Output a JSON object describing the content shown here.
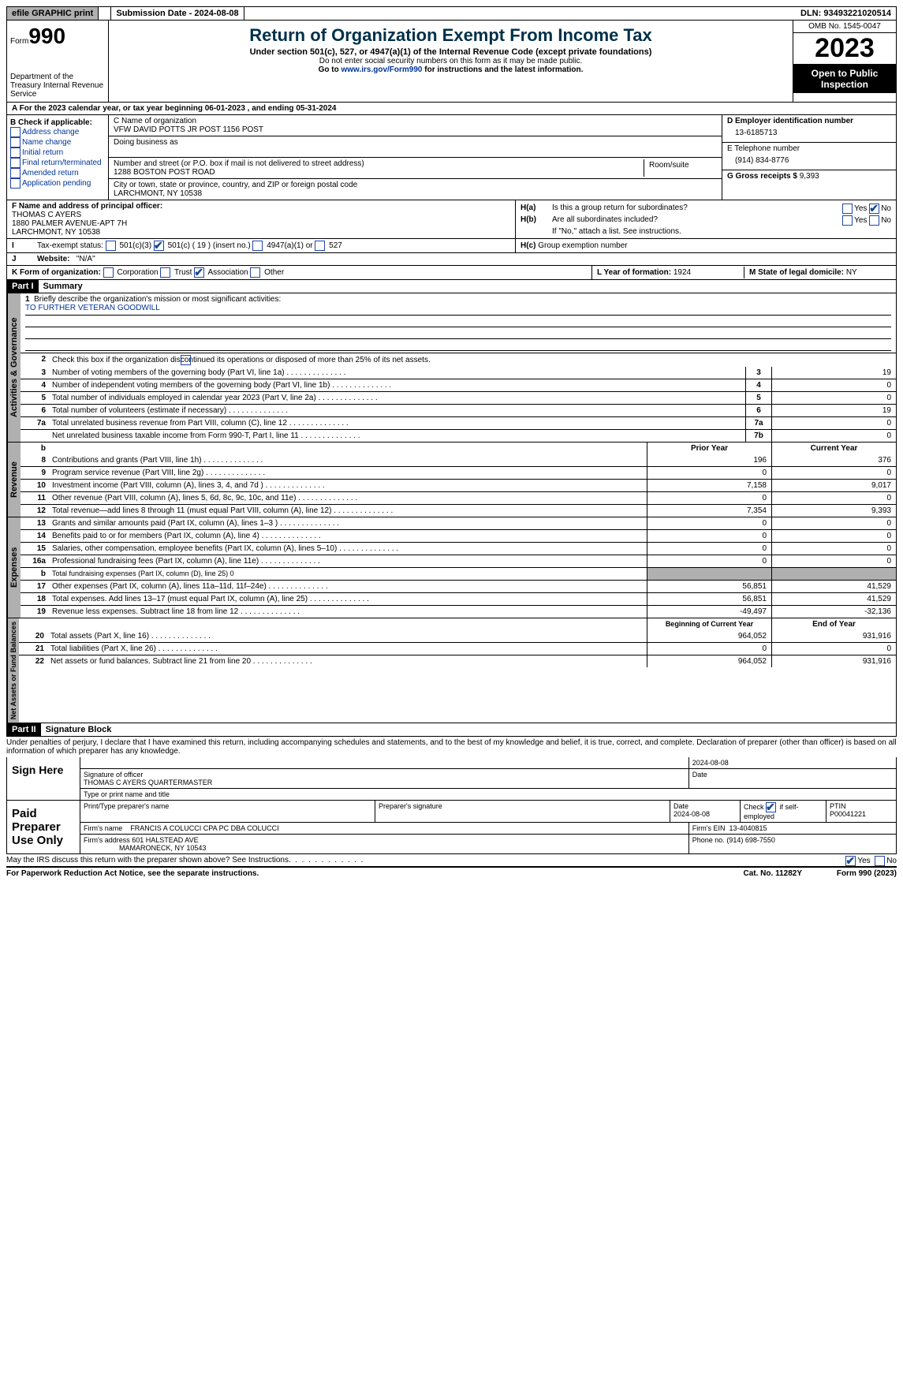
{
  "top": {
    "efile": "efile GRAPHIC print",
    "submission": "Submission Date - 2024-08-08",
    "dln": "DLN: 93493221020514"
  },
  "header": {
    "form_label": "Form",
    "form_num": "990",
    "dept": "Department of the Treasury Internal Revenue Service",
    "title": "Return of Organization Exempt From Income Tax",
    "subtitle": "Under section 501(c), 527, or 4947(a)(1) of the Internal Revenue Code (except private foundations)",
    "note1": "Do not enter social security numbers on this form as it may be made public.",
    "note2_pre": "Go to ",
    "note2_link": "www.irs.gov/Form990",
    "note2_post": " for instructions and the latest information.",
    "omb": "OMB No. 1545-0047",
    "year": "2023",
    "inspect": "Open to Public Inspection"
  },
  "rowA": "A  For the 2023 calendar year, or tax year beginning 06-01-2023    , and ending 05-31-2024",
  "boxB": {
    "title": "B Check if applicable:",
    "items": [
      "Address change",
      "Name change",
      "Initial return",
      "Final return/terminated",
      "Amended return",
      "Application pending"
    ]
  },
  "boxC": {
    "name_label": "C Name of organization",
    "name": "VFW DAVID POTTS JR POST 1156 POST",
    "dba_label": "Doing business as",
    "street_label": "Number and street (or P.O. box if mail is not delivered to street address)",
    "room_label": "Room/suite",
    "street": "1288 BOSTON POST ROAD",
    "city_label": "City or town, state or province, country, and ZIP or foreign postal code",
    "city": "LARCHMONT, NY  10538"
  },
  "boxD": {
    "label": "D Employer identification number",
    "val": "13-6185713"
  },
  "boxE": {
    "label": "E Telephone number",
    "val": "(914) 834-8776"
  },
  "boxG": {
    "label": "G Gross receipts $",
    "val": "9,393"
  },
  "boxF": {
    "label": "F  Name and address of principal officer:",
    "name": "THOMAS C AYERS",
    "addr1": "1880 PALMER AVENUE-APT 7H",
    "addr2": "LARCHMONT, NY  10538"
  },
  "boxH": {
    "a": "Is this a group return for subordinates?",
    "b": "Are all subordinates included?",
    "b_note": "If \"No,\" attach a list. See instructions.",
    "c": "Group exemption number",
    "yes": "Yes",
    "no": "No"
  },
  "boxI": {
    "label": "Tax-exempt status:",
    "c3": "501(c)(3)",
    "c": "501(c) ( 19 ) (insert no.)",
    "a4947": "4947(a)(1) or",
    "s527": "527"
  },
  "boxJ": {
    "label": "Website:",
    "val": "\"N/A\""
  },
  "boxK": {
    "label": "K Form of organization:",
    "corp": "Corporation",
    "trust": "Trust",
    "assoc": "Association",
    "other": "Other"
  },
  "boxL": {
    "label": "L Year of formation:",
    "val": "1924"
  },
  "boxM": {
    "label": "M State of legal domicile:",
    "val": "NY"
  },
  "part1": {
    "hdr": "Part I",
    "title": "Summary",
    "mission_label": "Briefly describe the organization's mission or most significant activities:",
    "mission": "TO FURTHER VETERAN GOODWILL",
    "line2": "Check this box       if the organization discontinued its operations or disposed of more than 25% of its net assets.",
    "vtab_gov": "Activities & Governance",
    "vtab_rev": "Revenue",
    "vtab_exp": "Expenses",
    "vtab_net": "Net Assets or Fund Balances",
    "cols": {
      "prior": "Prior Year",
      "current": "Current Year",
      "begin": "Beginning of Current Year",
      "end": "End of Year"
    },
    "lines": [
      {
        "n": "3",
        "d": "Number of voting members of the governing body (Part VI, line 1a)",
        "box": "3",
        "v": "19"
      },
      {
        "n": "4",
        "d": "Number of independent voting members of the governing body (Part VI, line 1b)",
        "box": "4",
        "v": "0"
      },
      {
        "n": "5",
        "d": "Total number of individuals employed in calendar year 2023 (Part V, line 2a)",
        "box": "5",
        "v": "0"
      },
      {
        "n": "6",
        "d": "Total number of volunteers (estimate if necessary)",
        "box": "6",
        "v": "19"
      },
      {
        "n": "7a",
        "d": "Total unrelated business revenue from Part VIII, column (C), line 12",
        "box": "7a",
        "v": "0"
      },
      {
        "n": "",
        "d": "Net unrelated business taxable income from Form 990-T, Part I, line 11",
        "box": "7b",
        "v": "0"
      }
    ],
    "rev": [
      {
        "n": "8",
        "d": "Contributions and grants (Part VIII, line 1h)",
        "p": "196",
        "c": "376"
      },
      {
        "n": "9",
        "d": "Program service revenue (Part VIII, line 2g)",
        "p": "0",
        "c": "0"
      },
      {
        "n": "10",
        "d": "Investment income (Part VIII, column (A), lines 3, 4, and 7d )",
        "p": "7,158",
        "c": "9,017"
      },
      {
        "n": "11",
        "d": "Other revenue (Part VIII, column (A), lines 5, 6d, 8c, 9c, 10c, and 11e)",
        "p": "0",
        "c": "0"
      },
      {
        "n": "12",
        "d": "Total revenue—add lines 8 through 11 (must equal Part VIII, column (A), line 12)",
        "p": "7,354",
        "c": "9,393"
      }
    ],
    "exp": [
      {
        "n": "13",
        "d": "Grants and similar amounts paid (Part IX, column (A), lines 1–3 )",
        "p": "0",
        "c": "0"
      },
      {
        "n": "14",
        "d": "Benefits paid to or for members (Part IX, column (A), line 4)",
        "p": "0",
        "c": "0"
      },
      {
        "n": "15",
        "d": "Salaries, other compensation, employee benefits (Part IX, column (A), lines 5–10)",
        "p": "0",
        "c": "0"
      },
      {
        "n": "16a",
        "d": "Professional fundraising fees (Part IX, column (A), line 11e)",
        "p": "0",
        "c": "0"
      },
      {
        "n": "b",
        "d": "Total fundraising expenses (Part IX, column (D), line 25) 0",
        "grey": true
      },
      {
        "n": "17",
        "d": "Other expenses (Part IX, column (A), lines 11a–11d, 11f–24e)",
        "p": "56,851",
        "c": "41,529"
      },
      {
        "n": "18",
        "d": "Total expenses. Add lines 13–17 (must equal Part IX, column (A), line 25)",
        "p": "56,851",
        "c": "41,529"
      },
      {
        "n": "19",
        "d": "Revenue less expenses. Subtract line 18 from line 12",
        "p": "-49,497",
        "c": "-32,136"
      }
    ],
    "net": [
      {
        "n": "20",
        "d": "Total assets (Part X, line 16)",
        "p": "964,052",
        "c": "931,916"
      },
      {
        "n": "21",
        "d": "Total liabilities (Part X, line 26)",
        "p": "0",
        "c": "0"
      },
      {
        "n": "22",
        "d": "Net assets or fund balances. Subtract line 21 from line 20",
        "p": "964,052",
        "c": "931,916"
      }
    ]
  },
  "part2": {
    "hdr": "Part II",
    "title": "Signature Block",
    "decl": "Under penalties of perjury, I declare that I have examined this return, including accompanying schedules and statements, and to the best of my knowledge and belief, it is true, correct, and complete. Declaration of preparer (other than officer) is based on all information of which preparer has any knowledge.",
    "sign_here": "Sign Here",
    "sig_officer": "Signature of officer",
    "officer": "THOMAS C AYERS QUARTERMASTER",
    "type_title": "Type or print name and title",
    "date": "Date",
    "date_val": "2024-08-08",
    "paid": "Paid Preparer Use Only",
    "prep_name": "Print/Type preparer's name",
    "prep_sig": "Preparer's signature",
    "prep_date": "Date",
    "prep_date_val": "2024-08-08",
    "self_emp": "Check       if self-employed",
    "ptin": "PTIN",
    "ptin_val": "P00041221",
    "firm_name": "Firm's name",
    "firm_name_val": "FRANCIS A COLUCCI CPA PC DBA COLUCCI",
    "firm_ein": "Firm's EIN",
    "firm_ein_val": "13-4040815",
    "firm_addr": "Firm's address",
    "firm_addr_val": "601 HALSTEAD AVE",
    "firm_addr2": "MAMARONECK, NY  10543",
    "phone": "Phone no.",
    "phone_val": "(914) 698-7550",
    "discuss": "May the IRS discuss this return with the preparer shown above? See Instructions."
  },
  "footer": {
    "pra": "For Paperwork Reduction Act Notice, see the separate instructions.",
    "cat": "Cat. No. 11282Y",
    "form": "Form 990 (2023)"
  }
}
